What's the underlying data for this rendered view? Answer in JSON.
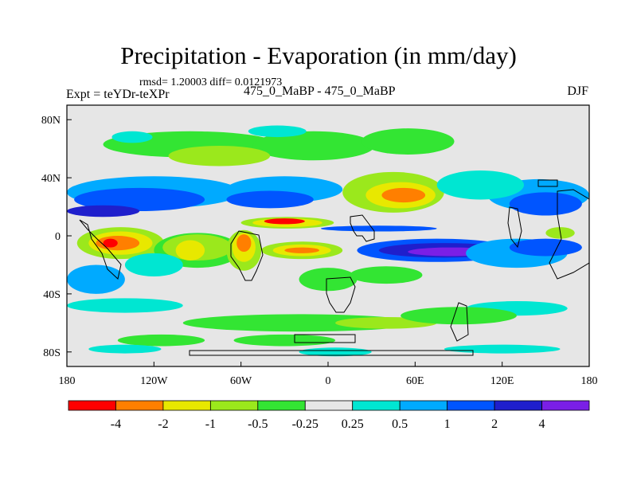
{
  "header": {
    "title": "Precipitation - Evaporation (in mm/day)",
    "stats": "rmsd= 1.20003 diff= 0.0121973",
    "experiment": "Expt = teYDr-teXPr",
    "comparison": "475_0_MaBP - 475_0_MaBP",
    "season": "DJF"
  },
  "chart_data": {
    "type": "heatmap",
    "title": "Precipitation - Evaporation (in mm/day)",
    "xlabel": "",
    "ylabel": "",
    "xlim": [
      -180,
      180
    ],
    "ylim": [
      -90,
      90
    ],
    "x_ticks": [
      {
        "value": -180,
        "label": "180"
      },
      {
        "value": -120,
        "label": "120W"
      },
      {
        "value": -60,
        "label": "60W"
      },
      {
        "value": 0,
        "label": "0"
      },
      {
        "value": 60,
        "label": "60E"
      },
      {
        "value": 120,
        "label": "120E"
      },
      {
        "value": 180,
        "label": "180"
      }
    ],
    "y_ticks": [
      {
        "value": 80,
        "label": "80N"
      },
      {
        "value": 40,
        "label": "40N"
      },
      {
        "value": 0,
        "label": "0"
      },
      {
        "value": -40,
        "label": "40S"
      },
      {
        "value": -80,
        "label": "80S"
      }
    ],
    "colorbar": {
      "levels": [
        "-4",
        "-2",
        "-1",
        "-0.5",
        "-0.25",
        "0.25",
        "0.5",
        "1",
        "2",
        "4"
      ],
      "colors": [
        "#ff0000",
        "#ff7f00",
        "#e8e800",
        "#9be81c",
        "#33e533",
        "#e6e6e6",
        "#00e6d2",
        "#00aaff",
        "#0055ff",
        "#1f1fcc",
        "#7a1fe6"
      ]
    },
    "background_color": "#e6e6e6",
    "regions": [
      {
        "c": "#33e533",
        "lon": -95,
        "lat": 63,
        "rlon": 60,
        "rlat": 9
      },
      {
        "c": "#33e533",
        "lon": -10,
        "lat": 62,
        "rlon": 42,
        "rlat": 10
      },
      {
        "c": "#33e533",
        "lon": 55,
        "lat": 65,
        "rlon": 32,
        "rlat": 9
      },
      {
        "c": "#9be81c",
        "lon": -75,
        "lat": 55,
        "rlon": 35,
        "rlat": 7
      },
      {
        "c": "#00e6d2",
        "lon": -135,
        "lat": 68,
        "rlon": 14,
        "rlat": 4
      },
      {
        "c": "#00e6d2",
        "lon": -35,
        "lat": 72,
        "rlon": 20,
        "rlat": 4
      },
      {
        "c": "#00aaff",
        "lon": -120,
        "lat": 30,
        "rlon": 60,
        "rlat": 11
      },
      {
        "c": "#00aaff",
        "lon": -30,
        "lat": 32,
        "rlon": 40,
        "rlat": 9
      },
      {
        "c": "#00aaff",
        "lon": 145,
        "lat": 28,
        "rlon": 35,
        "rlat": 11
      },
      {
        "c": "#0055ff",
        "lon": -130,
        "lat": 25,
        "rlon": 45,
        "rlat": 8
      },
      {
        "c": "#0055ff",
        "lon": -40,
        "lat": 25,
        "rlon": 30,
        "rlat": 6
      },
      {
        "c": "#0055ff",
        "lon": 150,
        "lat": 22,
        "rlon": 25,
        "rlat": 8
      },
      {
        "c": "#1f1fcc",
        "lon": -155,
        "lat": 17,
        "rlon": 25,
        "rlat": 4
      },
      {
        "c": "#9be81c",
        "lon": 45,
        "lat": 30,
        "rlon": 35,
        "rlat": 14
      },
      {
        "c": "#e8e800",
        "lon": 50,
        "lat": 28,
        "rlon": 24,
        "rlat": 9
      },
      {
        "c": "#ff7f00",
        "lon": 52,
        "lat": 28,
        "rlon": 15,
        "rlat": 5
      },
      {
        "c": "#00e6d2",
        "lon": 105,
        "lat": 35,
        "rlon": 30,
        "rlat": 10
      },
      {
        "c": "#9be81c",
        "lon": -28,
        "lat": 9,
        "rlon": 32,
        "rlat": 4
      },
      {
        "c": "#e8e800",
        "lon": -28,
        "lat": 9,
        "rlon": 24,
        "rlat": 3
      },
      {
        "c": "#ff0000",
        "lon": -30,
        "lat": 10,
        "rlon": 14,
        "rlat": 2
      },
      {
        "c": "#0055ff",
        "lon": 35,
        "lat": 5,
        "rlon": 40,
        "rlat": 2
      },
      {
        "c": "#9be81c",
        "lon": -143,
        "lat": -5,
        "rlon": 30,
        "rlat": 11
      },
      {
        "c": "#e8e800",
        "lon": -143,
        "lat": -5,
        "rlon": 22,
        "rlat": 8
      },
      {
        "c": "#ff7f00",
        "lon": -145,
        "lat": -5,
        "rlon": 15,
        "rlat": 5
      },
      {
        "c": "#ff0000",
        "lon": -150,
        "lat": -5,
        "rlon": 5,
        "rlat": 3
      },
      {
        "c": "#33e533",
        "lon": -90,
        "lat": -10,
        "rlon": 30,
        "rlat": 12
      },
      {
        "c": "#9be81c",
        "lon": -90,
        "lat": -8,
        "rlon": 24,
        "rlat": 9
      },
      {
        "c": "#e8e800",
        "lon": -95,
        "lat": -10,
        "rlon": 10,
        "rlat": 7
      },
      {
        "c": "#9be81c",
        "lon": -58,
        "lat": -10,
        "rlon": 12,
        "rlat": 14
      },
      {
        "c": "#e8e800",
        "lon": -58,
        "lat": -8,
        "rlon": 8,
        "rlat": 10
      },
      {
        "c": "#ff7f00",
        "lon": -58,
        "lat": -5,
        "rlon": 5,
        "rlat": 6
      },
      {
        "c": "#9be81c",
        "lon": -18,
        "lat": -10,
        "rlon": 28,
        "rlat": 6
      },
      {
        "c": "#e8e800",
        "lon": -18,
        "lat": -10,
        "rlon": 20,
        "rlat": 4
      },
      {
        "c": "#ff7f00",
        "lon": -18,
        "lat": -10,
        "rlon": 12,
        "rlat": 2
      },
      {
        "c": "#0055ff",
        "lon": 75,
        "lat": -10,
        "rlon": 55,
        "rlat": 8
      },
      {
        "c": "#1f1fcc",
        "lon": 80,
        "lat": -10,
        "rlon": 45,
        "rlat": 5
      },
      {
        "c": "#7a1fe6",
        "lon": 85,
        "lat": -11,
        "rlon": 30,
        "rlat": 3
      },
      {
        "c": "#00aaff",
        "lon": 130,
        "lat": -12,
        "rlon": 35,
        "rlat": 10
      },
      {
        "c": "#0055ff",
        "lon": 150,
        "lat": -8,
        "rlon": 25,
        "rlat": 6
      },
      {
        "c": "#00aaff",
        "lon": -160,
        "lat": -30,
        "rlon": 20,
        "rlat": 10
      },
      {
        "c": "#00e6d2",
        "lon": -120,
        "lat": -20,
        "rlon": 20,
        "rlat": 8
      },
      {
        "c": "#9be81c",
        "lon": 160,
        "lat": 2,
        "rlon": 10,
        "rlat": 4
      },
      {
        "c": "#33e533",
        "lon": 0,
        "lat": -30,
        "rlon": 20,
        "rlat": 8
      },
      {
        "c": "#33e533",
        "lon": 40,
        "lat": -27,
        "rlon": 25,
        "rlat": 6
      },
      {
        "c": "#00e6d2",
        "lon": -140,
        "lat": -48,
        "rlon": 40,
        "rlat": 5
      },
      {
        "c": "#00e6d2",
        "lon": 130,
        "lat": -50,
        "rlon": 35,
        "rlat": 5
      },
      {
        "c": "#33e533",
        "lon": -20,
        "lat": -60,
        "rlon": 80,
        "rlat": 6
      },
      {
        "c": "#9be81c",
        "lon": 40,
        "lat": -60,
        "rlon": 35,
        "rlat": 4
      },
      {
        "c": "#33e533",
        "lon": 90,
        "lat": -55,
        "rlon": 40,
        "rlat": 6
      },
      {
        "c": "#33e533",
        "lon": -115,
        "lat": -72,
        "rlon": 30,
        "rlat": 4
      },
      {
        "c": "#33e533",
        "lon": -30,
        "lat": -72,
        "rlon": 35,
        "rlat": 4
      },
      {
        "c": "#00e6d2",
        "lon": -140,
        "lat": -78,
        "rlon": 25,
        "rlat": 3
      },
      {
        "c": "#00e6d2",
        "lon": 5,
        "lat": -80,
        "rlon": 25,
        "rlat": 3
      },
      {
        "c": "#00e6d2",
        "lon": 120,
        "lat": -78,
        "rlon": 40,
        "rlat": 3
      }
    ]
  }
}
